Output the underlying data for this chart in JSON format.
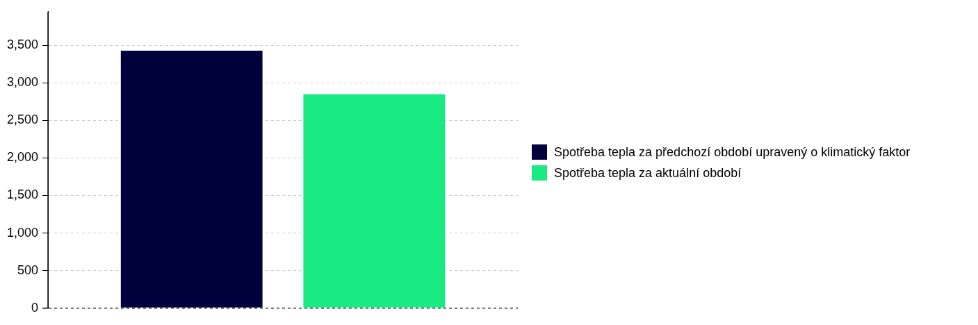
{
  "chart_data": {
    "type": "bar",
    "categories": [
      null
    ],
    "series": [
      {
        "name": "Spotřeba tepla za předchozí období upravený o klimatický faktor",
        "color": "#00003c",
        "values": [
          3430
        ]
      },
      {
        "name": "Spotřeba tepla za aktuální období",
        "color": "#1aea82",
        "values": [
          2850
        ]
      }
    ],
    "ylim": [
      0,
      3950
    ],
    "yticks": [
      {
        "value": 0,
        "label": "0"
      },
      {
        "value": 500,
        "label": "500"
      },
      {
        "value": 1000,
        "label": "1,000"
      },
      {
        "value": 1500,
        "label": "1,500"
      },
      {
        "value": 2000,
        "label": "2,000"
      },
      {
        "value": 2500,
        "label": "2,500"
      },
      {
        "value": 3000,
        "label": "3,000"
      },
      {
        "value": 3500,
        "label": "3,500"
      }
    ],
    "grid": "y",
    "legend": "right"
  }
}
